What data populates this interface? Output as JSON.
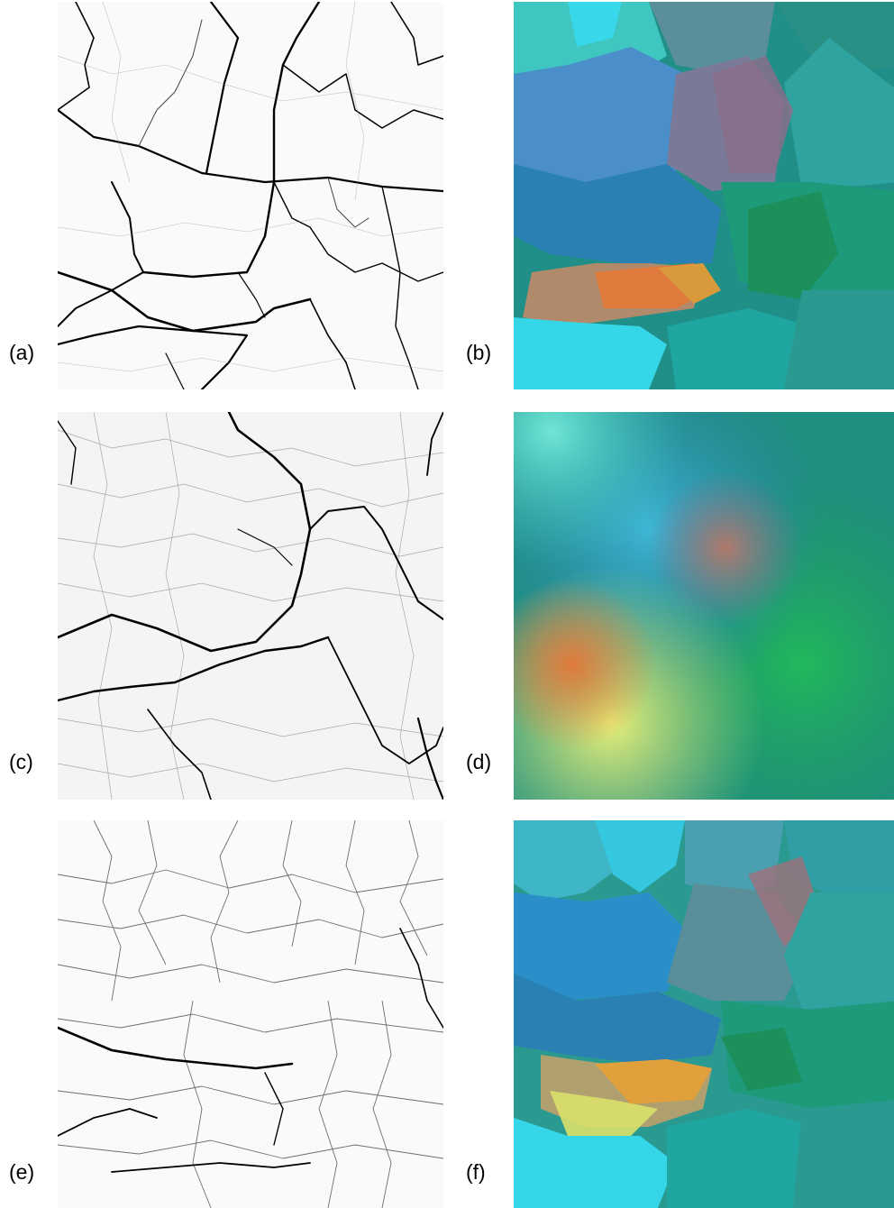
{
  "panels": [
    {
      "id": "a",
      "label": "(a)",
      "kind": "crack-map"
    },
    {
      "id": "b",
      "label": "(b)",
      "kind": "color-field"
    },
    {
      "id": "c",
      "label": "(c)",
      "kind": "crack-map"
    },
    {
      "id": "d",
      "label": "(d)",
      "kind": "color-field"
    },
    {
      "id": "e",
      "label": "(e)",
      "kind": "crack-map"
    },
    {
      "id": "f",
      "label": "(f)",
      "kind": "color-field"
    }
  ],
  "colors": {
    "background": "#ffffff",
    "ink": "#000000",
    "teal": "#1f8f88",
    "blue": "#2a7fb3",
    "cyan": "#35d6e8",
    "green": "#1c9a5c",
    "orange": "#e07a3c",
    "yellow": "#d9e06a",
    "mauve": "#8a6f8a"
  }
}
